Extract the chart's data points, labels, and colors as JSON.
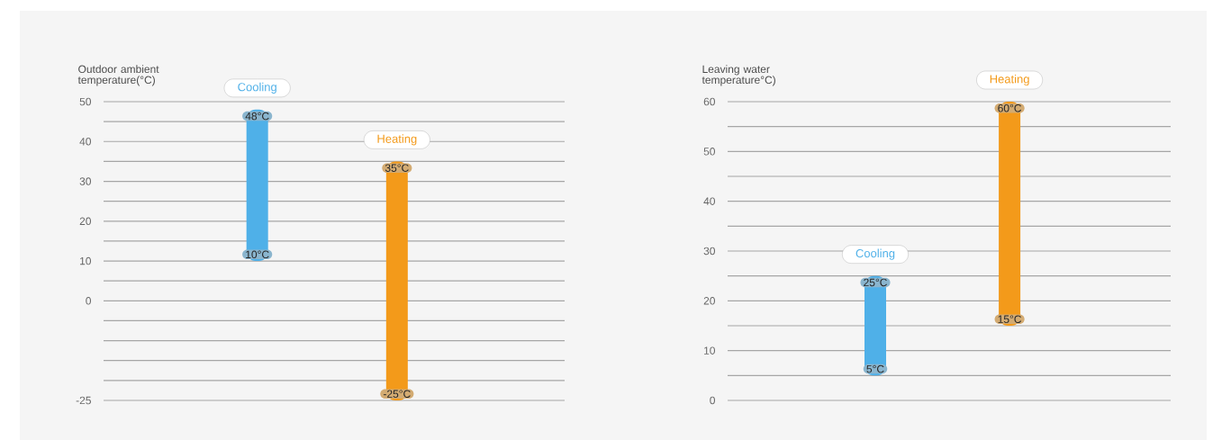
{
  "chart_data": [
    {
      "type": "bar",
      "ylabel": "Outdoor ambient temperature(°C)",
      "categories": [
        "Cooling",
        "Heating"
      ],
      "base": [
        10,
        -25
      ],
      "values": [
        38,
        60
      ],
      "colors": [
        "#4fb0e8",
        "#f39a1a"
      ],
      "ylim": [
        -25,
        50
      ],
      "yticks": [
        -25,
        {
          "value": -20,
          "label": null
        },
        {
          "value": -15,
          "label": null
        },
        {
          "value": -10,
          "label": null
        },
        {
          "value": -5,
          "label": null
        },
        0,
        {
          "value": 5,
          "label": null
        },
        10,
        {
          "value": 15,
          "label": null
        },
        20,
        {
          "value": 25,
          "label": null
        },
        30,
        {
          "value": 35,
          "label": null
        },
        40,
        {
          "value": 45,
          "label": null
        },
        50
      ],
      "grid": "y",
      "annotations": [
        {
          "text": "48°C",
          "x": "Cooling",
          "y": 48
        },
        {
          "text": "10°C",
          "x": "Cooling",
          "y": 10
        },
        {
          "text": "35°C",
          "x": "Heating",
          "y": 35
        },
        {
          "text": "-25°C",
          "x": "Heating",
          "y": -25
        }
      ]
    },
    {
      "type": "bar",
      "ylabel": "Leaving water temperature°C)",
      "categories": [
        "Cooling",
        "Heating"
      ],
      "base": [
        5,
        15
      ],
      "values": [
        20,
        45
      ],
      "colors": [
        "#4fb0e8",
        "#f39a1a"
      ],
      "ylim": [
        0,
        60
      ],
      "yticks": [
        0,
        {
          "value": 5,
          "label": null
        },
        10,
        {
          "value": 15,
          "label": null
        },
        20,
        {
          "value": 25,
          "label": null
        },
        30,
        {
          "value": 35,
          "label": null
        },
        40,
        {
          "value": 45,
          "label": null
        },
        50,
        {
          "value": 55,
          "label": null
        },
        60
      ],
      "grid": "y",
      "annotations": [
        "25°C",
        "5°C",
        "60°C",
        "15°C"
      ]
    }
  ]
}
